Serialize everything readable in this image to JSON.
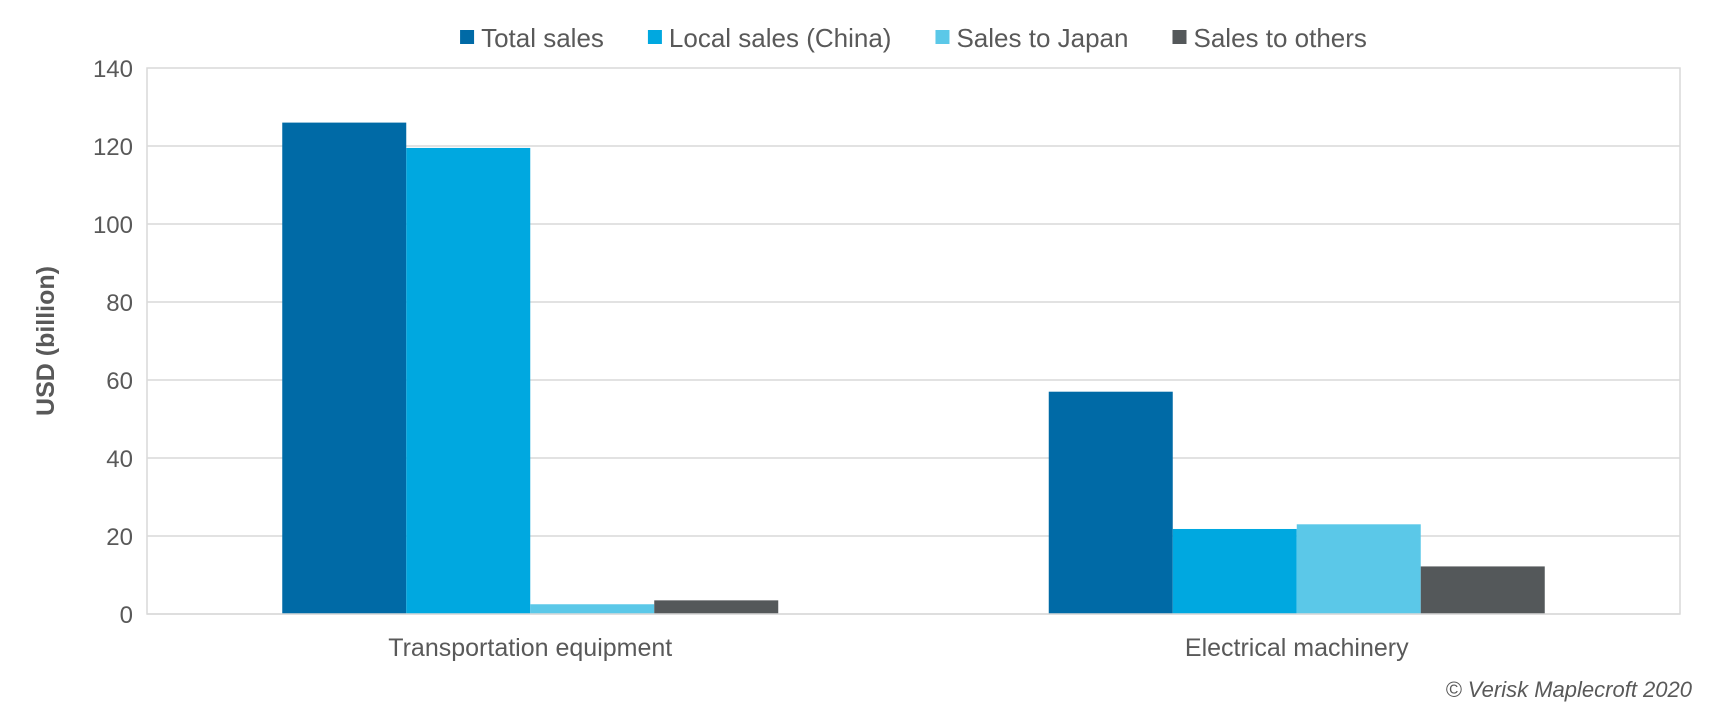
{
  "chart_data": {
    "type": "bar",
    "title": "",
    "xlabel": "",
    "ylabel": "USD (billion)",
    "ylim": [
      0,
      140
    ],
    "yticks": [
      0,
      20,
      40,
      60,
      80,
      100,
      120,
      140
    ],
    "grid": true,
    "legend_position": "top",
    "categories": [
      "Transportation equipment",
      "Electrical machinery"
    ],
    "series": [
      {
        "name": "Total sales",
        "color": "#006AA6",
        "values": [
          126,
          57
        ]
      },
      {
        "name": "Local sales (China)",
        "color": "#00A8E0",
        "values": [
          119.5,
          21.8
        ]
      },
      {
        "name": "Sales to Japan",
        "color": "#5BC8E8",
        "values": [
          2.5,
          23
        ]
      },
      {
        "name": "Sales to others",
        "color": "#54585A",
        "values": [
          3.5,
          12.2
        ]
      }
    ]
  },
  "credit": "© Verisk Maplecroft 2020"
}
